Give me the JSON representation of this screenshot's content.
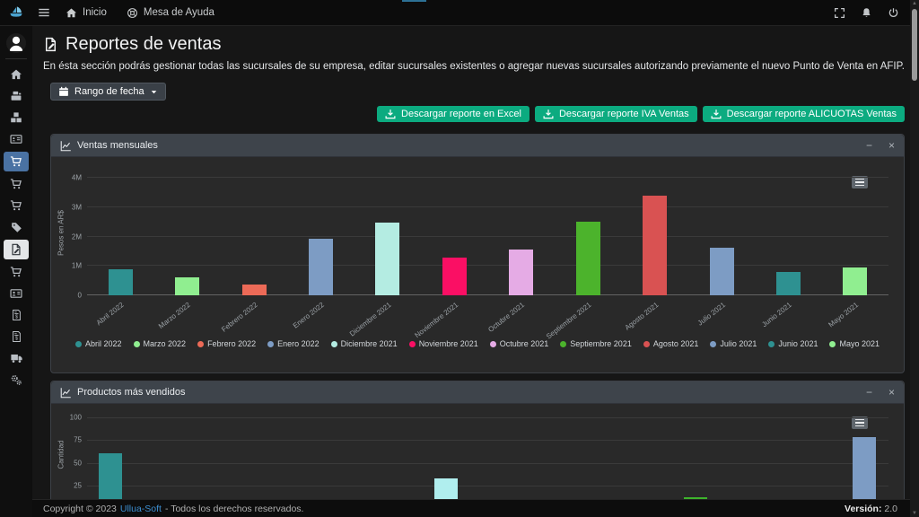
{
  "navbar": {
    "menu_items": [
      {
        "label": "Inicio",
        "icon": "home-icon"
      },
      {
        "label": "Mesa de Ayuda",
        "icon": "life-ring-icon"
      }
    ],
    "right_icons": [
      "expand-icon",
      "bell-icon",
      "power-icon"
    ]
  },
  "sidebar": {
    "avatar_icon": "user-avatar",
    "items": [
      {
        "icon": "home"
      },
      {
        "icon": "cash-register"
      },
      {
        "icon": "boxes"
      },
      {
        "icon": "id-card"
      },
      {
        "icon": "shopping-cart",
        "active": "blue"
      },
      {
        "icon": "shopping-cart"
      },
      {
        "icon": "shopping-cart"
      },
      {
        "icon": "tag"
      },
      {
        "icon": "file-pen",
        "active": "white"
      },
      {
        "icon": "shopping-cart"
      },
      {
        "icon": "address-card"
      },
      {
        "icon": "file-invoice-dollar"
      },
      {
        "icon": "file-invoice-dollar"
      },
      {
        "icon": "truck"
      },
      {
        "icon": "cogs"
      }
    ]
  },
  "page": {
    "title": "Reportes de ventas",
    "description": "En ésta sección podrás gestionar todas las sucursales de su empresa, editar sucursales existentes o agregar nuevas sucursales autorizando previamente el nuevo Punto de Venta en AFIP."
  },
  "toolbar": {
    "date_range_label": "Rango de fecha",
    "download_buttons": [
      "Descargar reporte en Excel",
      "Descargar reporte IVA Ventas",
      "Descargar reporte ALICUOTAS Ventas"
    ]
  },
  "panels": [
    {
      "title": "Ventas mensuales",
      "controls": [
        "minimize",
        "close"
      ],
      "minimize_glyph": "−",
      "close_glyph": "×"
    },
    {
      "title": "Productos más vendidos",
      "controls": [
        "minimize",
        "close"
      ],
      "minimize_glyph": "−",
      "close_glyph": "×"
    }
  ],
  "chart_data": [
    {
      "type": "bar",
      "title": "Ventas mensuales",
      "xlabel": "",
      "ylabel": "Pesos en AR$",
      "ylim": [
        0,
        4000000
      ],
      "ytick_labels": [
        "4M",
        "3M",
        "2M",
        "1M",
        "0"
      ],
      "grid": true,
      "legend_position": "bottom",
      "categories": [
        "Abril 2022",
        "Marzo 2022",
        "Febrero 2022",
        "Enero 2022",
        "Diciembre 2021",
        "Noviembre 2021",
        "Octubre 2021",
        "Septiembre 2021",
        "Agosto 2021",
        "Julio 2021",
        "Junio 2021",
        "Mayo 2021"
      ],
      "values": [
        900000,
        620000,
        360000,
        1920000,
        2480000,
        1270000,
        1570000,
        2500000,
        3400000,
        1620000,
        800000,
        950000
      ],
      "colors": [
        "#2e9191",
        "#90ee90",
        "#ec6a57",
        "#7d9cc4",
        "#b4ece2",
        "#fa0f64",
        "#e5abe5",
        "#4cb32c",
        "#d95252",
        "#7d9cc4",
        "#2e9191",
        "#90ee90"
      ]
    },
    {
      "type": "bar",
      "title": "Productos más vendidos",
      "xlabel": "",
      "ylabel": "Cantidad",
      "ylim": [
        0,
        100
      ],
      "ytick_labels": [
        "100",
        "75",
        "50",
        "25"
      ],
      "grid": true,
      "note": "chart is cut off at the bottom of the viewport; category labels not visible",
      "bars": [
        {
          "value": 60,
          "color": "#2e9191",
          "x_frac": 0.029
        },
        {
          "value": 33,
          "color": "#b0eeee",
          "x_frac": 0.448
        },
        {
          "value": 12,
          "color": "#3eb42c",
          "x_frac": 0.759
        },
        {
          "value": 78,
          "color": "#7d9cc4",
          "x_frac": 0.97
        }
      ]
    }
  ],
  "footer": {
    "copyright_prefix": "Copyright © 2023",
    "brand_link": "Ullua-Soft",
    "copyright_suffix": "- Todos los derechos reservados.",
    "version_label": "Versión:",
    "version_value": "2.0"
  },
  "colors": {
    "accent_green": "#0cab80",
    "sidebar_active_blue": "#4a72a3",
    "link_blue": "#3d8fd1",
    "panel_header": "#3e444b"
  }
}
